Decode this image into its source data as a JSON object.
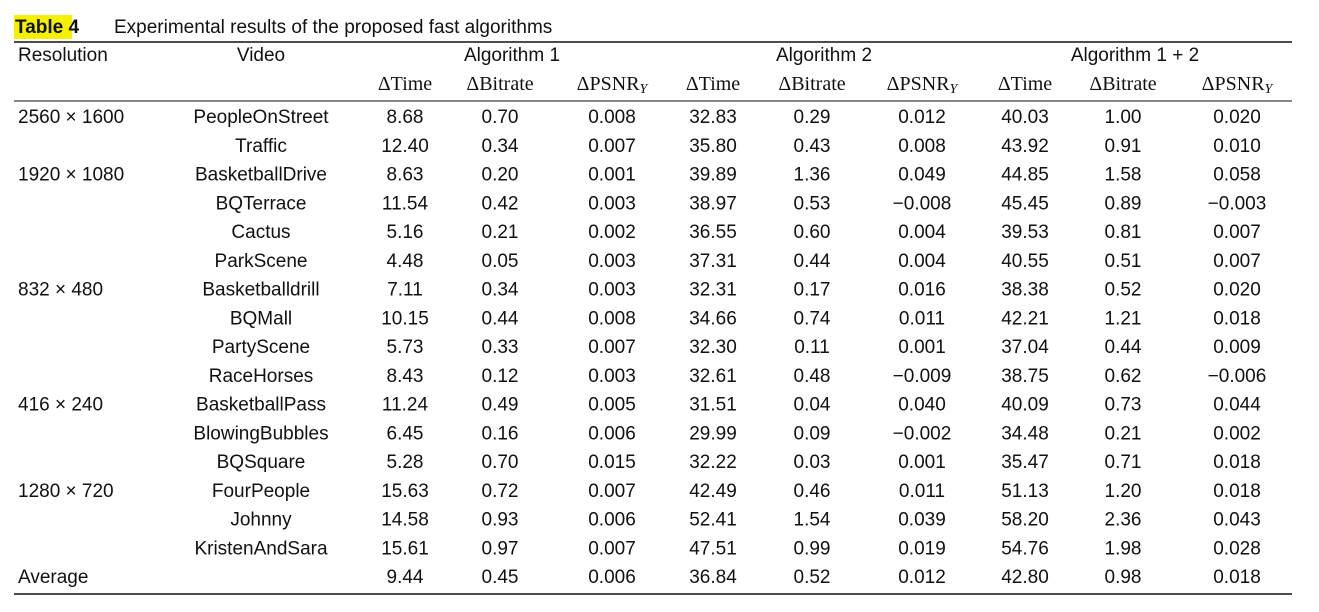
{
  "header": {
    "label": "Table",
    "number": "4",
    "title": "Experimental results of the proposed fast algorithms"
  },
  "table": {
    "columns": [
      "Resolution",
      "Video"
    ],
    "groups": [
      "Algorithm 1",
      "Algorithm 2",
      "Algorithm 1 + 2"
    ],
    "subheaders": [
      {
        "text": "ΔTime"
      },
      {
        "text": "ΔBitrate"
      },
      {
        "text": "ΔPSNR",
        "sub": "Y"
      }
    ],
    "rows": [
      [
        "2560 × 1600",
        "PeopleOnStreet",
        "8.68",
        "0.70",
        "0.008",
        "32.83",
        "0.29",
        "0.012",
        "40.03",
        "1.00",
        "0.020"
      ],
      [
        null,
        "Traffic",
        "12.40",
        "0.34",
        "0.007",
        "35.80",
        "0.43",
        "0.008",
        "43.92",
        "0.91",
        "0.010"
      ],
      [
        "1920 × 1080",
        "BasketballDrive",
        "8.63",
        "0.20",
        "0.001",
        "39.89",
        "1.36",
        "0.049",
        "44.85",
        "1.58",
        "0.058"
      ],
      [
        null,
        "BQTerrace",
        "11.54",
        "0.42",
        "0.003",
        "38.97",
        "0.53",
        "−0.008",
        "45.45",
        "0.89",
        "−0.003"
      ],
      [
        null,
        "Cactus",
        "5.16",
        "0.21",
        "0.002",
        "36.55",
        "0.60",
        "0.004",
        "39.53",
        "0.81",
        "0.007"
      ],
      [
        null,
        "ParkScene",
        "4.48",
        "0.05",
        "0.003",
        "37.31",
        "0.44",
        "0.004",
        "40.55",
        "0.51",
        "0.007"
      ],
      [
        "832 × 480",
        "Basketballdrill",
        "7.11",
        "0.34",
        "0.003",
        "32.31",
        "0.17",
        "0.016",
        "38.38",
        "0.52",
        "0.020"
      ],
      [
        null,
        "BQMall",
        "10.15",
        "0.44",
        "0.008",
        "34.66",
        "0.74",
        "0.011",
        "42.21",
        "1.21",
        "0.018"
      ],
      [
        null,
        "PartyScene",
        "5.73",
        "0.33",
        "0.007",
        "32.30",
        "0.11",
        "0.001",
        "37.04",
        "0.44",
        "0.009"
      ],
      [
        null,
        "RaceHorses",
        "8.43",
        "0.12",
        "0.003",
        "32.61",
        "0.48",
        "−0.009",
        "38.75",
        "0.62",
        "−0.006"
      ],
      [
        "416 × 240",
        "BasketballPass",
        "11.24",
        "0.49",
        "0.005",
        "31.51",
        "0.04",
        "0.040",
        "40.09",
        "0.73",
        "0.044"
      ],
      [
        null,
        "BlowingBubbles",
        "6.45",
        "0.16",
        "0.006",
        "29.99",
        "0.09",
        "−0.002",
        "34.48",
        "0.21",
        "0.002"
      ],
      [
        null,
        "BQSquare",
        "5.28",
        "0.70",
        "0.015",
        "32.22",
        "0.03",
        "0.001",
        "35.47",
        "0.71",
        "0.018"
      ],
      [
        "1280 × 720",
        "FourPeople",
        "15.63",
        "0.72",
        "0.007",
        "42.49",
        "0.46",
        "0.011",
        "51.13",
        "1.20",
        "0.018"
      ],
      [
        null,
        "Johnny",
        "14.58",
        "0.93",
        "0.006",
        "52.41",
        "1.54",
        "0.039",
        "58.20",
        "2.36",
        "0.043"
      ],
      [
        null,
        "KristenAndSara",
        "15.61",
        "0.97",
        "0.007",
        "47.51",
        "0.99",
        "0.019",
        "54.76",
        "1.98",
        "0.028"
      ],
      [
        "Average",
        null,
        "9.44",
        "0.45",
        "0.006",
        "36.84",
        "0.52",
        "0.012",
        "42.80",
        "0.98",
        "0.018"
      ]
    ]
  }
}
